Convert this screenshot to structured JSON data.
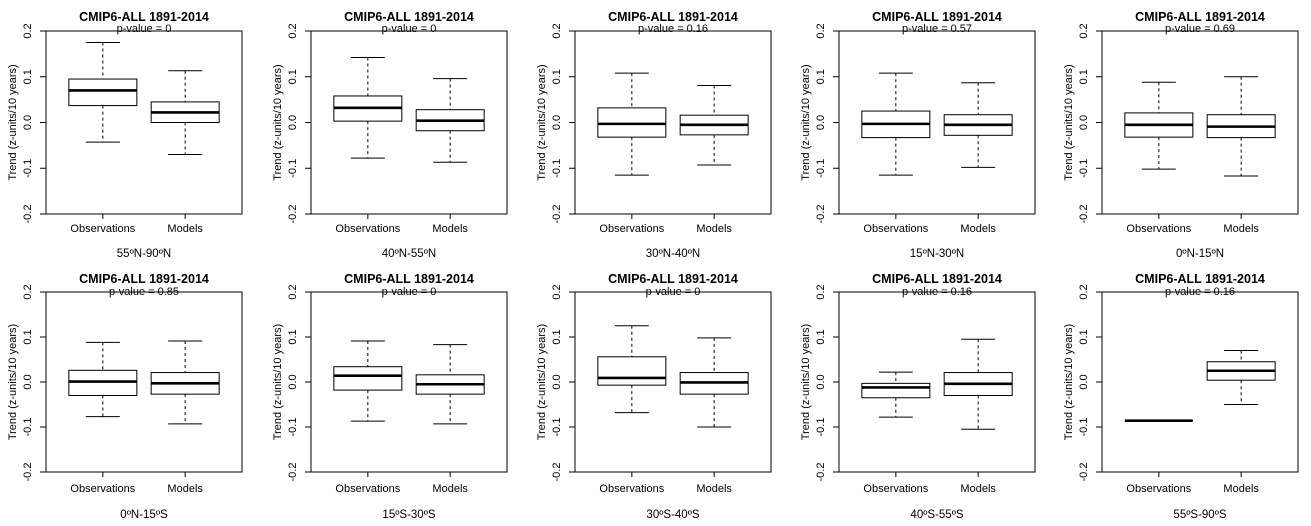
{
  "chart_data": {
    "type": "boxplot",
    "ylabel": "Trend (z-units/10 years)",
    "ylim": [
      -0.2,
      0.2
    ],
    "yticks": [
      -0.2,
      -0.1,
      0.0,
      0.1,
      0.2
    ],
    "yticks_text": [
      "-0.2",
      "-0.1",
      "0.0",
      "0.1",
      "0.2"
    ],
    "categories": [
      "Observations",
      "Models"
    ],
    "panels": [
      {
        "title": "CMIP6-ALL 1891-2014",
        "subtitle": "p-value = 0",
        "region": "55ºN-90ºN",
        "boxes": [
          {
            "name": "Observations",
            "min": -0.043,
            "q1": 0.037,
            "median": 0.07,
            "q3": 0.095,
            "max": 0.175
          },
          {
            "name": "Models",
            "min": -0.07,
            "q1": 0.0,
            "median": 0.022,
            "q3": 0.045,
            "max": 0.113
          }
        ]
      },
      {
        "title": "CMIP6-ALL 1891-2014",
        "subtitle": "p-value = 0",
        "region": "40ºN-55ºN",
        "boxes": [
          {
            "name": "Observations",
            "min": -0.078,
            "q1": 0.003,
            "median": 0.032,
            "q3": 0.058,
            "max": 0.142
          },
          {
            "name": "Models",
            "min": -0.087,
            "q1": -0.018,
            "median": 0.004,
            "q3": 0.028,
            "max": 0.096
          }
        ]
      },
      {
        "title": "CMIP6-ALL 1891-2014",
        "subtitle": "p-value = 0.16",
        "region": "30ºN-40ºN",
        "boxes": [
          {
            "name": "Observations",
            "min": -0.115,
            "q1": -0.032,
            "median": -0.003,
            "q3": 0.032,
            "max": 0.108
          },
          {
            "name": "Models",
            "min": -0.093,
            "q1": -0.027,
            "median": -0.005,
            "q3": 0.016,
            "max": 0.081
          }
        ]
      },
      {
        "title": "CMIP6-ALL 1891-2014",
        "subtitle": "p-value = 0.57",
        "region": "15ºN-30ºN",
        "boxes": [
          {
            "name": "Observations",
            "min": -0.115,
            "q1": -0.033,
            "median": -0.003,
            "q3": 0.025,
            "max": 0.108
          },
          {
            "name": "Models",
            "min": -0.098,
            "q1": -0.028,
            "median": -0.005,
            "q3": 0.017,
            "max": 0.087
          }
        ]
      },
      {
        "title": "CMIP6-ALL 1891-2014",
        "subtitle": "p-value = 0.69",
        "region": "0ºN-15ºN",
        "boxes": [
          {
            "name": "Observations",
            "min": -0.102,
            "q1": -0.032,
            "median": -0.005,
            "q3": 0.021,
            "max": 0.088
          },
          {
            "name": "Models",
            "min": -0.117,
            "q1": -0.033,
            "median": -0.009,
            "q3": 0.017,
            "max": 0.1
          }
        ]
      },
      {
        "title": "CMIP6-ALL 1891-2014",
        "subtitle": "p-value = 0.85",
        "region": "0ºN-15ºS",
        "boxes": [
          {
            "name": "Observations",
            "min": -0.077,
            "q1": -0.03,
            "median": 0.001,
            "q3": 0.026,
            "max": 0.088
          },
          {
            "name": "Models",
            "min": -0.093,
            "q1": -0.027,
            "median": -0.003,
            "q3": 0.021,
            "max": 0.091
          }
        ]
      },
      {
        "title": "CMIP6-ALL 1891-2014",
        "subtitle": "p-value = 0",
        "region": "15ºS-30ºS",
        "boxes": [
          {
            "name": "Observations",
            "min": -0.087,
            "q1": -0.018,
            "median": 0.014,
            "q3": 0.034,
            "max": 0.091
          },
          {
            "name": "Models",
            "min": -0.093,
            "q1": -0.027,
            "median": -0.005,
            "q3": 0.016,
            "max": 0.083
          }
        ]
      },
      {
        "title": "CMIP6-ALL 1891-2014",
        "subtitle": "p-value = 0",
        "region": "30ºS-40ºS",
        "boxes": [
          {
            "name": "Observations",
            "min": -0.068,
            "q1": -0.007,
            "median": 0.009,
            "q3": 0.056,
            "max": 0.125
          },
          {
            "name": "Models",
            "min": -0.1,
            "q1": -0.027,
            "median": -0.001,
            "q3": 0.021,
            "max": 0.098
          }
        ]
      },
      {
        "title": "CMIP6-ALL 1891-2014",
        "subtitle": "p-value = 0.16",
        "region": "40ºS-55ºS",
        "boxes": [
          {
            "name": "Observations",
            "min": -0.078,
            "q1": -0.035,
            "median": -0.012,
            "q3": -0.003,
            "max": 0.022
          },
          {
            "name": "Models",
            "min": -0.105,
            "q1": -0.03,
            "median": -0.004,
            "q3": 0.021,
            "max": 0.095
          }
        ]
      },
      {
        "title": "CMIP6-ALL 1891-2014",
        "subtitle": "p-value = 0.16",
        "region": "55ºS-90ºS",
        "boxes": [
          {
            "name": "Observations",
            "min": -0.086,
            "q1": -0.086,
            "median": -0.086,
            "q3": -0.086,
            "max": -0.086
          },
          {
            "name": "Models",
            "min": -0.05,
            "q1": 0.004,
            "median": 0.025,
            "q3": 0.045,
            "max": 0.07
          }
        ]
      }
    ]
  }
}
